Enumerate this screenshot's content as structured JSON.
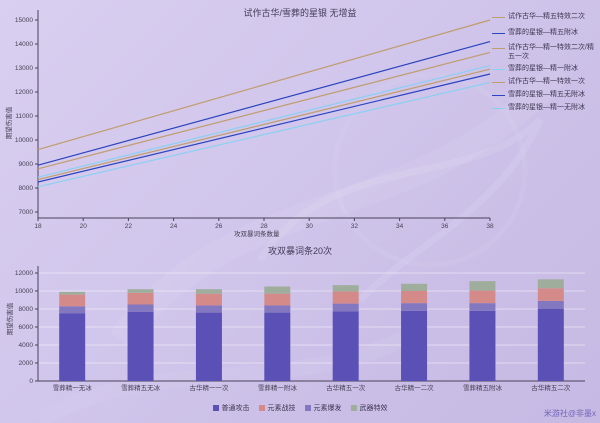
{
  "page": {
    "watermark": "米游社@非墨x"
  },
  "chart_data": [
    {
      "type": "line",
      "title": "试作古华/雪葬的星银 无增益",
      "xlabel": "攻双暴词条数量",
      "ylabel": "期望伤害值",
      "xlim": [
        18,
        38
      ],
      "ylim": [
        7000,
        15000
      ],
      "x_ticks": [
        18,
        20,
        22,
        24,
        26,
        28,
        30,
        32,
        34,
        36,
        38
      ],
      "y_ticks": [
        7000,
        8000,
        9000,
        10000,
        11000,
        12000,
        13000,
        14000,
        15000
      ],
      "grid": false,
      "legend_position": "right",
      "series": [
        {
          "name": "试作古华—精五特效二次",
          "color": "#bf9d6d",
          "x": [
            18,
            38
          ],
          "values": [
            9600,
            15000
          ]
        },
        {
          "name": "雪葬的星银—精五附冰",
          "color": "#2b44c0",
          "x": [
            18,
            38
          ],
          "values": [
            8950,
            14100
          ]
        },
        {
          "name": "试作古华—精一特效二次/精五一次",
          "color": "#bf9d6d",
          "x": [
            18,
            38
          ],
          "values": [
            8800,
            13650
          ]
        },
        {
          "name": "雪葬的星银—精一附冰",
          "color": "#8ad0f2",
          "x": [
            18,
            38
          ],
          "values": [
            8450,
            13100
          ]
        },
        {
          "name": "试作古华—精一特效一次",
          "color": "#bf9d6d",
          "x": [
            18,
            38
          ],
          "values": [
            8350,
            12950
          ]
        },
        {
          "name": "雪葬的星银—精五无附冰",
          "color": "#2b44c0",
          "x": [
            18,
            38
          ],
          "values": [
            8250,
            12750
          ]
        },
        {
          "name": "雪葬的星银—精一无附冰",
          "color": "#8ad0f2",
          "x": [
            18,
            38
          ],
          "values": [
            8050,
            12400
          ]
        }
      ]
    },
    {
      "type": "stacked_bar",
      "title": "攻双暴词条20次",
      "ylabel": "期望伤害值",
      "ylim": [
        0,
        12000
      ],
      "y_ticks": [
        0,
        2000,
        4000,
        6000,
        8000,
        10000,
        12000
      ],
      "grid": true,
      "legend_position": "bottom",
      "categories": [
        "雪葬精一无冰",
        "雪葬精五无冰",
        "古华精一一次",
        "雪葬精一附冰",
        "古华精五一次",
        "古华精一二次",
        "雪葬精五附冰",
        "古华精五二次"
      ],
      "series": [
        {
          "name": "普通攻击",
          "color": "#5a50b5",
          "values": [
            7500,
            7700,
            7600,
            7600,
            7750,
            7800,
            7800,
            8000
          ]
        },
        {
          "name": "元素爆发",
          "color": "#8377bf",
          "values": [
            800,
            800,
            800,
            800,
            850,
            850,
            850,
            900
          ]
        },
        {
          "name": "元素战技",
          "color": "#d58a8a",
          "values": [
            1300,
            1300,
            1300,
            1300,
            1350,
            1350,
            1400,
            1400
          ]
        },
        {
          "name": "武器特效",
          "color": "#9fae9c",
          "values": [
            300,
            400,
            500,
            800,
            700,
            800,
            1050,
            1000
          ]
        }
      ],
      "legend": [
        "普通攻击",
        "元素战技",
        "元素爆发",
        "武器特效"
      ]
    }
  ]
}
